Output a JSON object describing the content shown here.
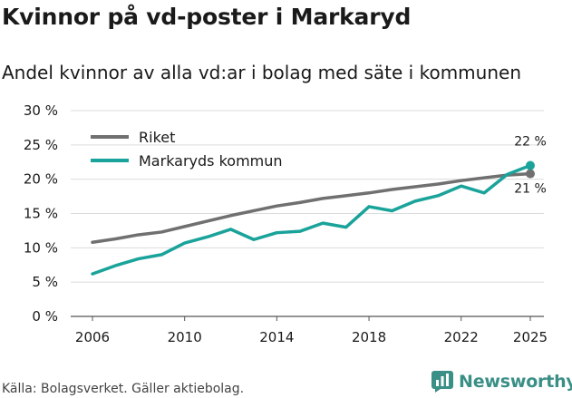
{
  "title": "Kvinnor på vd-poster i Markaryd",
  "subtitle": "Andel kvinnor av alla vd:ar i bolag med säte i kommunen",
  "footer": "Källa: Bolagsverket. Gäller aktiebolag.",
  "brand": {
    "name": "Newsworthy",
    "icon": "bar-chart-logo-icon",
    "color": "#3a8f86"
  },
  "chart_data": {
    "type": "line",
    "title": "Kvinnor på vd-poster i Markaryd",
    "xlabel": "",
    "ylabel": "",
    "x": [
      2006,
      2007,
      2008,
      2009,
      2010,
      2011,
      2012,
      2013,
      2014,
      2015,
      2016,
      2017,
      2018,
      2019,
      2020,
      2021,
      2022,
      2023,
      2024,
      2025
    ],
    "xlim": [
      2006,
      2025
    ],
    "ylim": [
      0,
      30
    ],
    "xticks": [
      {
        "value": 2006,
        "label": "2006"
      },
      {
        "value": 2010,
        "label": "2010"
      },
      {
        "value": 2014,
        "label": "2014"
      },
      {
        "value": 2018,
        "label": "2018"
      },
      {
        "value": 2022,
        "label": "2022"
      },
      {
        "value": 2025,
        "label": "2025"
      }
    ],
    "yticks": [
      {
        "value": 0,
        "label": "0 %"
      },
      {
        "value": 5,
        "label": "5 %"
      },
      {
        "value": 10,
        "label": "10 %"
      },
      {
        "value": 15,
        "label": "15 %"
      },
      {
        "value": 20,
        "label": "20 %"
      },
      {
        "value": 25,
        "label": "25 %"
      },
      {
        "value": 30,
        "label": "30 %"
      }
    ],
    "grid": true,
    "legend_position": "top-left",
    "series": [
      {
        "name": "Riket",
        "color": "#707070",
        "values": [
          10.8,
          11.3,
          11.9,
          12.3,
          13.1,
          13.9,
          14.7,
          15.4,
          16.1,
          16.6,
          17.2,
          17.6,
          18.0,
          18.5,
          18.9,
          19.3,
          19.8,
          20.2,
          20.6,
          20.8
        ],
        "end_label": "21 %"
      },
      {
        "name": "Markaryds kommun",
        "color": "#1aa39a",
        "values": [
          6.2,
          7.4,
          8.4,
          9.0,
          10.7,
          11.6,
          12.7,
          11.2,
          12.2,
          12.4,
          13.6,
          13.0,
          16.0,
          15.4,
          16.8,
          17.6,
          19.0,
          18.0,
          20.7,
          22.0
        ],
        "end_label": "22 %"
      }
    ]
  }
}
